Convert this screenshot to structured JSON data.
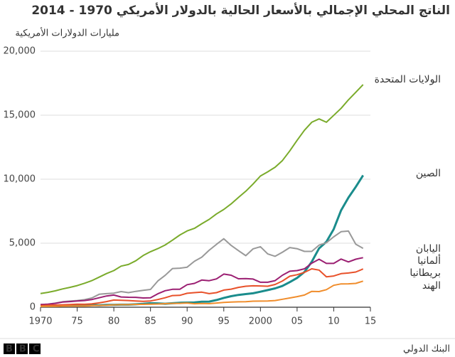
{
  "chart_data": {
    "type": "line",
    "title": "الناتج المحلي الإجمالي بالأسعار الحالية بالدولار الأمريكي 1970 - 2014",
    "subtitle": "مليارات الدولارات الأمريكية",
    "source": "البنك الدولي",
    "logo": "BBC",
    "grid": true,
    "xlim": [
      1970,
      2015
    ],
    "xticks": [
      1970,
      {
        "value": 1975,
        "label": "75"
      },
      {
        "value": 1980,
        "label": "80"
      },
      {
        "value": 1985,
        "label": "85"
      },
      {
        "value": 1990,
        "label": "90"
      },
      {
        "value": 1995,
        "label": "95"
      },
      2000,
      {
        "value": 2005,
        "label": "05"
      },
      {
        "value": 2010,
        "label": "10"
      },
      {
        "value": 2015,
        "label": "15"
      }
    ],
    "ylim": [
      0,
      20000
    ],
    "yticks": [
      0,
      {
        "value": 5000,
        "label": "5,000"
      },
      {
        "value": 10000,
        "label": "10,000"
      },
      {
        "value": 15000,
        "label": "15,000"
      },
      {
        "value": 20000,
        "label": "20,000"
      }
    ],
    "x": [
      1970,
      1971,
      1972,
      1973,
      1974,
      1975,
      1976,
      1977,
      1978,
      1979,
      1980,
      1981,
      1982,
      1983,
      1984,
      1985,
      1986,
      1987,
      1988,
      1989,
      1990,
      1991,
      1992,
      1993,
      1994,
      1995,
      1996,
      1997,
      1998,
      1999,
      2000,
      2001,
      2002,
      2003,
      2004,
      2005,
      2006,
      2007,
      2008,
      2009,
      2010,
      2011,
      2012,
      2013,
      2014
    ],
    "series": [
      {
        "name": "الولايات المتحدة",
        "color": "#7aab2b",
        "values": [
          1070,
          1160,
          1280,
          1430,
          1550,
          1690,
          1870,
          2080,
          2350,
          2630,
          2860,
          3210,
          3340,
          3630,
          4040,
          4340,
          4580,
          4860,
          5240,
          5640,
          5960,
          6160,
          6520,
          6860,
          7290,
          7640,
          8070,
          8580,
          9060,
          9630,
          10250,
          10580,
          10940,
          11460,
          12210,
          13040,
          13820,
          14450,
          14710,
          14450,
          14990,
          15540,
          16200,
          16790,
          17390
        ]
      },
      {
        "name": "الصين",
        "color": "#1a8c8c",
        "values": [
          90,
          100,
          110,
          140,
          140,
          160,
          150,
          170,
          150,
          180,
          190,
          200,
          200,
          230,
          260,
          310,
          300,
          270,
          310,
          350,
          360,
          380,
          430,
          440,
          560,
          730,
          860,
          960,
          1030,
          1090,
          1210,
          1340,
          1470,
          1660,
          1960,
          2290,
          2750,
          3550,
          4600,
          5110,
          6100,
          7570,
          8560,
          9400,
          10300
        ]
      },
      {
        "name": "اليابان",
        "color": "#999999",
        "values": [
          210,
          240,
          320,
          430,
          480,
          520,
          590,
          720,
          1010,
          1060,
          1100,
          1220,
          1140,
          1240,
          1320,
          1390,
          2050,
          2490,
          3020,
          3050,
          3130,
          3590,
          3910,
          4450,
          4910,
          5350,
          4830,
          4420,
          4030,
          4560,
          4730,
          4160,
          3980,
          4300,
          4660,
          4570,
          4360,
          4360,
          4850,
          5040,
          5500,
          5900,
          5950,
          4920,
          4600
        ]
      },
      {
        "name": "ألمانيا",
        "color": "#9b1f72",
        "values": [
          210,
          240,
          300,
          400,
          440,
          490,
          520,
          600,
          740,
          880,
          950,
          800,
          780,
          770,
          720,
          740,
          1050,
          1290,
          1400,
          1400,
          1760,
          1860,
          2120,
          2070,
          2210,
          2590,
          2500,
          2220,
          2240,
          2200,
          1950,
          1950,
          2080,
          2500,
          2810,
          2860,
          3000,
          3440,
          3750,
          3420,
          3420,
          3760,
          3540,
          3750,
          3870
        ]
      },
      {
        "name": "بريطانيا",
        "color": "#e8512a",
        "values": [
          130,
          150,
          170,
          190,
          210,
          240,
          230,
          260,
          340,
          440,
          560,
          540,
          520,
          490,
          460,
          490,
          600,
          740,
          910,
          930,
          1090,
          1140,
          1180,
          1060,
          1140,
          1340,
          1410,
          1550,
          1640,
          1670,
          1660,
          1640,
          1780,
          2050,
          2420,
          2540,
          2720,
          3000,
          2900,
          2380,
          2440,
          2620,
          2670,
          2750,
          2990
        ]
      },
      {
        "name": "الهند",
        "color": "#f08d2c",
        "values": [
          60,
          70,
          70,
          90,
          100,
          100,
          100,
          120,
          140,
          150,
          190,
          200,
          200,
          220,
          220,
          240,
          250,
          280,
          300,
          300,
          330,
          270,
          290,
          280,
          330,
          370,
          400,
          420,
          430,
          470,
          480,
          490,
          520,
          620,
          720,
          830,
          950,
          1240,
          1220,
          1370,
          1710,
          1820,
          1830,
          1860,
          2040
        ]
      }
    ]
  }
}
